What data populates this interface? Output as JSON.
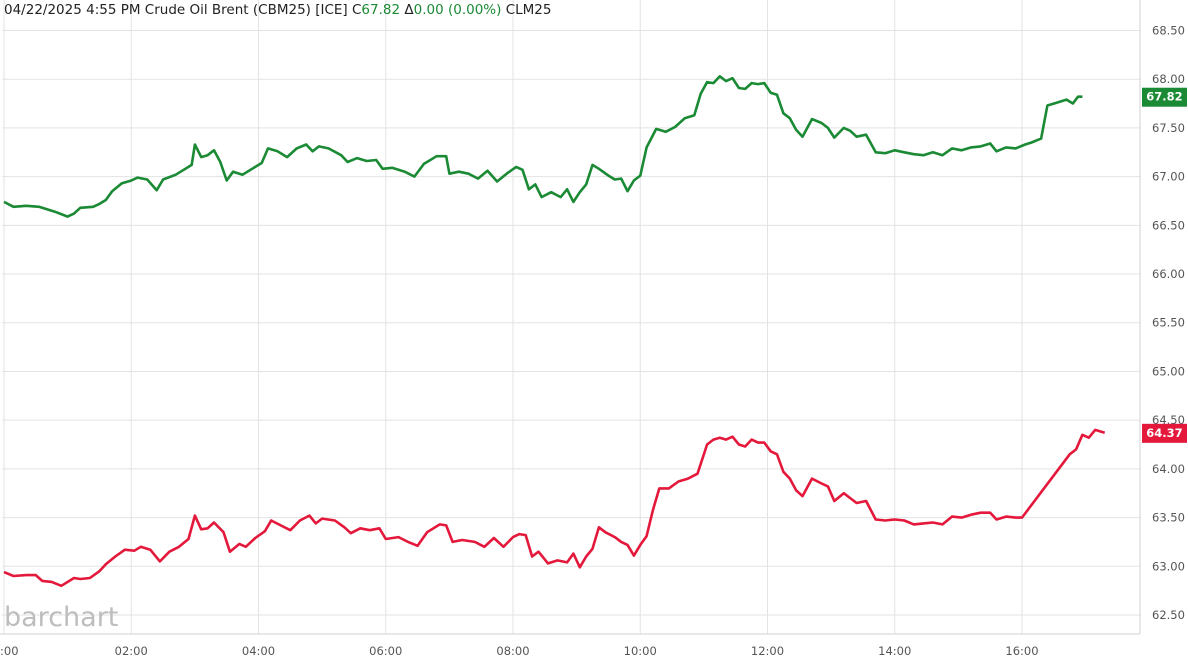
{
  "header": {
    "datetime": "04/22/2025  4:55 PM",
    "instrument": "Crude Oil Brent (CBM25) [ICE]",
    "close_prefix": "C",
    "close_value": "67.82",
    "change_prefix": "Δ",
    "change_value": "0.00 (0.00%)",
    "compare_symbol": "CLM25"
  },
  "brand": "barchart",
  "colors": {
    "series_green": "#1b8a34",
    "series_red": "#e4183b",
    "grid": "#e3e3e3",
    "axis_text": "#555555"
  },
  "chart_data": {
    "type": "line",
    "xlabel": "",
    "ylabel": "",
    "x_range_hours": [
      0,
      17.6
    ],
    "ylim": [
      62.3,
      68.75
    ],
    "y_ticks": [
      "62.50",
      "63.00",
      "63.50",
      "64.00",
      "64.50",
      "65.00",
      "65.50",
      "66.00",
      "66.50",
      "67.00",
      "67.50",
      "68.00",
      "68.50"
    ],
    "x_ticks": [
      {
        "t": 0,
        "label": ":00"
      },
      {
        "t": 2,
        "label": "02:00"
      },
      {
        "t": 4,
        "label": "04:00"
      },
      {
        "t": 6,
        "label": "06:00"
      },
      {
        "t": 8,
        "label": "08:00"
      },
      {
        "t": 10,
        "label": "10:00"
      },
      {
        "t": 12,
        "label": "12:00"
      },
      {
        "t": 14,
        "label": "14:00"
      },
      {
        "t": 16,
        "label": "16:00"
      }
    ],
    "grid": true,
    "series": [
      {
        "name": "CBM25",
        "color": "#1b8a34",
        "last_label": "67.82",
        "points": [
          [
            0.0,
            66.74
          ],
          [
            0.15,
            66.69
          ],
          [
            0.35,
            66.7
          ],
          [
            0.55,
            66.69
          ],
          [
            0.8,
            66.64
          ],
          [
            1.0,
            66.59
          ],
          [
            1.1,
            66.62
          ],
          [
            1.2,
            66.68
          ],
          [
            1.4,
            66.69
          ],
          [
            1.5,
            66.72
          ],
          [
            1.6,
            66.76
          ],
          [
            1.7,
            66.85
          ],
          [
            1.85,
            66.93
          ],
          [
            2.0,
            66.96
          ],
          [
            2.1,
            66.99
          ],
          [
            2.25,
            66.97
          ],
          [
            2.4,
            66.86
          ],
          [
            2.5,
            66.97
          ],
          [
            2.7,
            67.02
          ],
          [
            2.8,
            67.06
          ],
          [
            2.95,
            67.12
          ],
          [
            3.0,
            67.33
          ],
          [
            3.1,
            67.2
          ],
          [
            3.2,
            67.22
          ],
          [
            3.3,
            67.27
          ],
          [
            3.4,
            67.15
          ],
          [
            3.5,
            66.96
          ],
          [
            3.6,
            67.05
          ],
          [
            3.75,
            67.02
          ],
          [
            3.9,
            67.08
          ],
          [
            4.05,
            67.14
          ],
          [
            4.15,
            67.29
          ],
          [
            4.3,
            67.26
          ],
          [
            4.45,
            67.2
          ],
          [
            4.6,
            67.29
          ],
          [
            4.75,
            67.33
          ],
          [
            4.85,
            67.26
          ],
          [
            4.95,
            67.31
          ],
          [
            5.1,
            67.29
          ],
          [
            5.3,
            67.22
          ],
          [
            5.4,
            67.15
          ],
          [
            5.55,
            67.19
          ],
          [
            5.7,
            67.16
          ],
          [
            5.85,
            67.17
          ],
          [
            5.95,
            67.08
          ],
          [
            6.1,
            67.09
          ],
          [
            6.3,
            67.05
          ],
          [
            6.45,
            67.0
          ],
          [
            6.6,
            67.13
          ],
          [
            6.8,
            67.21
          ],
          [
            6.95,
            67.21
          ],
          [
            7.0,
            67.03
          ],
          [
            7.15,
            67.05
          ],
          [
            7.3,
            67.03
          ],
          [
            7.45,
            66.98
          ],
          [
            7.6,
            67.06
          ],
          [
            7.75,
            66.95
          ],
          [
            7.9,
            67.03
          ],
          [
            8.05,
            67.1
          ],
          [
            8.15,
            67.07
          ],
          [
            8.25,
            66.87
          ],
          [
            8.35,
            66.92
          ],
          [
            8.45,
            66.79
          ],
          [
            8.6,
            66.84
          ],
          [
            8.75,
            66.79
          ],
          [
            8.85,
            66.87
          ],
          [
            8.95,
            66.74
          ],
          [
            9.05,
            66.84
          ],
          [
            9.15,
            66.92
          ],
          [
            9.25,
            67.12
          ],
          [
            9.35,
            67.08
          ],
          [
            9.5,
            67.01
          ],
          [
            9.6,
            66.97
          ],
          [
            9.7,
            66.98
          ],
          [
            9.8,
            66.85
          ],
          [
            9.9,
            66.96
          ],
          [
            10.0,
            67.01
          ],
          [
            10.1,
            67.3
          ],
          [
            10.25,
            67.49
          ],
          [
            10.4,
            67.46
          ],
          [
            10.55,
            67.51
          ],
          [
            10.7,
            67.6
          ],
          [
            10.85,
            67.63
          ],
          [
            10.95,
            67.85
          ],
          [
            11.05,
            67.97
          ],
          [
            11.15,
            67.96
          ],
          [
            11.25,
            68.03
          ],
          [
            11.35,
            67.98
          ],
          [
            11.45,
            68.01
          ],
          [
            11.55,
            67.91
          ],
          [
            11.65,
            67.9
          ],
          [
            11.75,
            67.96
          ],
          [
            11.85,
            67.95
          ],
          [
            11.95,
            67.96
          ],
          [
            12.05,
            67.86
          ],
          [
            12.15,
            67.84
          ],
          [
            12.25,
            67.65
          ],
          [
            12.35,
            67.6
          ],
          [
            12.45,
            67.48
          ],
          [
            12.55,
            67.41
          ],
          [
            12.7,
            67.59
          ],
          [
            12.85,
            67.55
          ],
          [
            12.95,
            67.5
          ],
          [
            13.05,
            67.4
          ],
          [
            13.2,
            67.5
          ],
          [
            13.3,
            67.47
          ],
          [
            13.4,
            67.41
          ],
          [
            13.55,
            67.43
          ],
          [
            13.7,
            67.25
          ],
          [
            13.85,
            67.24
          ],
          [
            14.0,
            67.27
          ],
          [
            14.15,
            67.25
          ],
          [
            14.3,
            67.23
          ],
          [
            14.45,
            67.22
          ],
          [
            14.6,
            67.25
          ],
          [
            14.75,
            67.22
          ],
          [
            14.9,
            67.29
          ],
          [
            15.05,
            67.27
          ],
          [
            15.2,
            67.3
          ],
          [
            15.35,
            67.31
          ],
          [
            15.5,
            67.34
          ],
          [
            15.6,
            67.26
          ],
          [
            15.75,
            67.3
          ],
          [
            15.9,
            67.29
          ],
          [
            16.05,
            67.33
          ],
          [
            16.15,
            67.35
          ],
          [
            16.3,
            67.39
          ],
          [
            16.4,
            67.73
          ],
          [
            16.55,
            67.76
          ],
          [
            16.7,
            67.79
          ],
          [
            16.8,
            67.75
          ],
          [
            16.88,
            67.82
          ],
          [
            16.95,
            67.82
          ]
        ]
      },
      {
        "name": "CLM25",
        "color": "#e4183b",
        "last_label": "64.37",
        "points": [
          [
            0.0,
            62.94
          ],
          [
            0.15,
            62.9
          ],
          [
            0.35,
            62.91
          ],
          [
            0.5,
            62.91
          ],
          [
            0.6,
            62.85
          ],
          [
            0.75,
            62.84
          ],
          [
            0.9,
            62.8
          ],
          [
            1.1,
            62.88
          ],
          [
            1.2,
            62.87
          ],
          [
            1.35,
            62.88
          ],
          [
            1.5,
            62.95
          ],
          [
            1.6,
            63.02
          ],
          [
            1.75,
            63.1
          ],
          [
            1.9,
            63.17
          ],
          [
            2.05,
            63.16
          ],
          [
            2.15,
            63.2
          ],
          [
            2.3,
            63.17
          ],
          [
            2.45,
            63.05
          ],
          [
            2.6,
            63.15
          ],
          [
            2.75,
            63.2
          ],
          [
            2.9,
            63.28
          ],
          [
            3.0,
            63.52
          ],
          [
            3.1,
            63.38
          ],
          [
            3.2,
            63.39
          ],
          [
            3.3,
            63.45
          ],
          [
            3.45,
            63.35
          ],
          [
            3.55,
            63.15
          ],
          [
            3.7,
            63.23
          ],
          [
            3.8,
            63.2
          ],
          [
            3.95,
            63.29
          ],
          [
            4.1,
            63.36
          ],
          [
            4.2,
            63.47
          ],
          [
            4.35,
            63.42
          ],
          [
            4.5,
            63.37
          ],
          [
            4.65,
            63.47
          ],
          [
            4.8,
            63.52
          ],
          [
            4.9,
            63.44
          ],
          [
            5.0,
            63.49
          ],
          [
            5.2,
            63.47
          ],
          [
            5.35,
            63.4
          ],
          [
            5.45,
            63.34
          ],
          [
            5.6,
            63.39
          ],
          [
            5.75,
            63.37
          ],
          [
            5.9,
            63.39
          ],
          [
            6.0,
            63.28
          ],
          [
            6.2,
            63.3
          ],
          [
            6.35,
            63.25
          ],
          [
            6.5,
            63.21
          ],
          [
            6.65,
            63.35
          ],
          [
            6.85,
            63.43
          ],
          [
            6.95,
            63.42
          ],
          [
            7.05,
            63.25
          ],
          [
            7.2,
            63.27
          ],
          [
            7.4,
            63.25
          ],
          [
            7.55,
            63.2
          ],
          [
            7.7,
            63.29
          ],
          [
            7.85,
            63.2
          ],
          [
            8.0,
            63.3
          ],
          [
            8.1,
            63.33
          ],
          [
            8.2,
            63.32
          ],
          [
            8.3,
            63.1
          ],
          [
            8.4,
            63.15
          ],
          [
            8.55,
            63.03
          ],
          [
            8.7,
            63.06
          ],
          [
            8.85,
            63.04
          ],
          [
            8.95,
            63.13
          ],
          [
            9.05,
            62.99
          ],
          [
            9.15,
            63.1
          ],
          [
            9.25,
            63.18
          ],
          [
            9.35,
            63.4
          ],
          [
            9.45,
            63.35
          ],
          [
            9.6,
            63.3
          ],
          [
            9.7,
            63.25
          ],
          [
            9.8,
            63.22
          ],
          [
            9.9,
            63.11
          ],
          [
            10.0,
            63.22
          ],
          [
            10.1,
            63.31
          ],
          [
            10.2,
            63.58
          ],
          [
            10.3,
            63.8
          ],
          [
            10.45,
            63.8
          ],
          [
            10.6,
            63.87
          ],
          [
            10.75,
            63.9
          ],
          [
            10.9,
            63.95
          ],
          [
            11.05,
            64.25
          ],
          [
            11.15,
            64.3
          ],
          [
            11.25,
            64.32
          ],
          [
            11.35,
            64.3
          ],
          [
            11.45,
            64.33
          ],
          [
            11.55,
            64.25
          ],
          [
            11.65,
            64.23
          ],
          [
            11.75,
            64.3
          ],
          [
            11.85,
            64.27
          ],
          [
            11.95,
            64.27
          ],
          [
            12.05,
            64.18
          ],
          [
            12.15,
            64.15
          ],
          [
            12.25,
            63.97
          ],
          [
            12.35,
            63.9
          ],
          [
            12.45,
            63.78
          ],
          [
            12.55,
            63.72
          ],
          [
            12.7,
            63.9
          ],
          [
            12.85,
            63.85
          ],
          [
            12.95,
            63.82
          ],
          [
            13.05,
            63.67
          ],
          [
            13.2,
            63.75
          ],
          [
            13.3,
            63.7
          ],
          [
            13.4,
            63.65
          ],
          [
            13.55,
            63.67
          ],
          [
            13.7,
            63.48
          ],
          [
            13.85,
            63.47
          ],
          [
            14.0,
            63.48
          ],
          [
            14.15,
            63.47
          ],
          [
            14.3,
            63.43
          ],
          [
            14.45,
            63.44
          ],
          [
            14.6,
            63.45
          ],
          [
            14.75,
            63.43
          ],
          [
            14.9,
            63.51
          ],
          [
            15.05,
            63.5
          ],
          [
            15.2,
            63.53
          ],
          [
            15.35,
            63.55
          ],
          [
            15.5,
            63.55
          ],
          [
            15.6,
            63.48
          ],
          [
            15.75,
            63.51
          ],
          [
            15.9,
            63.5
          ],
          [
            16.0,
            63.5
          ],
          [
            16.75,
            64.15
          ],
          [
            16.85,
            64.2
          ],
          [
            16.95,
            64.35
          ],
          [
            17.05,
            64.32
          ],
          [
            17.15,
            64.4
          ],
          [
            17.3,
            64.37
          ]
        ]
      }
    ]
  }
}
